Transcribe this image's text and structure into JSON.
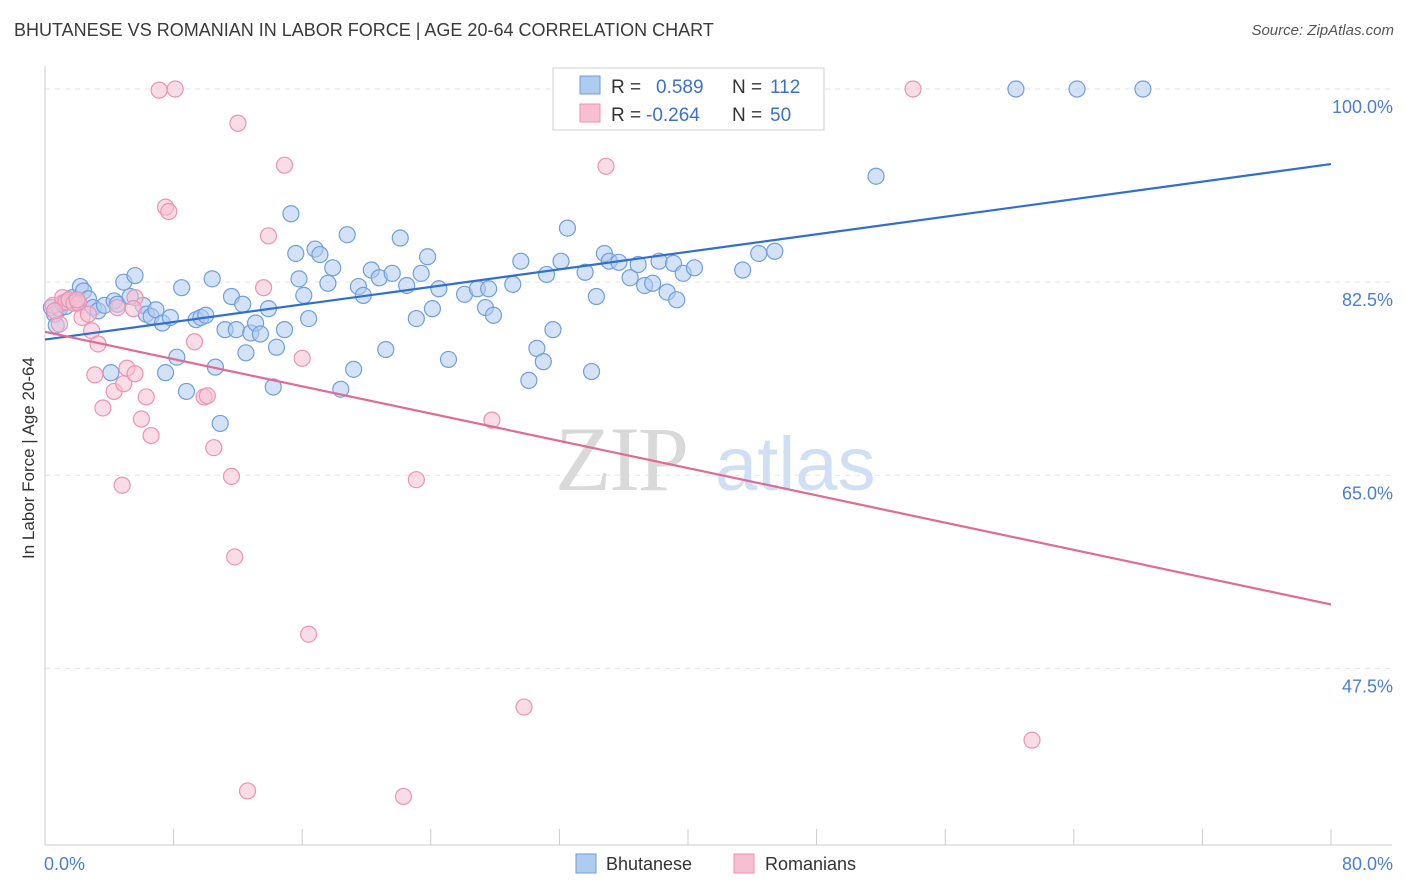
{
  "title": "BHUTANESE VS ROMANIAN IN LABOR FORCE | AGE 20-64 CORRELATION CHART",
  "source": "Source: ZipAtlas.com",
  "watermark": {
    "zip": "ZIP",
    "atlas": "atlas"
  },
  "colors": {
    "blue_fill": "#aecbf0",
    "blue_stroke": "#6f9fdc",
    "blue_line": "#2f6fd0",
    "pink_fill": "#f6bfd2",
    "pink_stroke": "#ee92b3",
    "pink_line": "#e06b96",
    "grid": "#e3e3e3",
    "tick_text": "#4a7fcf"
  },
  "legend": {
    "rows": [
      {
        "r_label": "R =",
        "r_value": "0.589",
        "n_label": "N =",
        "n_value": "112"
      },
      {
        "r_label": "R =",
        "r_value": "-0.264",
        "n_label": "N =",
        "n_value": "50"
      }
    ]
  },
  "chart_data": {
    "type": "scatter",
    "xlabel": "",
    "ylabel": "In Labor Force | Age 20-64",
    "xlim": [
      0,
      80
    ],
    "ylim": [
      31.5,
      101
    ],
    "x_tick_labels": [
      "0.0%",
      "80.0%"
    ],
    "y_ticks": [
      {
        "value": 100,
        "label": "100.0%"
      },
      {
        "value": 82.5,
        "label": "82.5%"
      },
      {
        "value": 65,
        "label": "65.0%"
      },
      {
        "value": 47.5,
        "label": "47.5%"
      }
    ],
    "grid": true,
    "legend_position": "top-center",
    "series": [
      {
        "name": "Bhutanese",
        "trend": {
          "x": [
            0,
            80
          ],
          "y": [
            77.3,
            93.2
          ]
        },
        "points": [
          [
            0.4,
            80.2
          ],
          [
            0.6,
            79.6
          ],
          [
            0.7,
            78.6
          ],
          [
            0.9,
            80.1
          ],
          [
            1.1,
            80.6
          ],
          [
            1.3,
            80.3
          ],
          [
            1.5,
            80.9
          ],
          [
            1.7,
            81.1
          ],
          [
            2.0,
            80.7
          ],
          [
            2.2,
            82.1
          ],
          [
            2.4,
            81.7
          ],
          [
            2.7,
            81.0
          ],
          [
            3.0,
            80.2
          ],
          [
            3.3,
            79.9
          ],
          [
            3.7,
            80.4
          ],
          [
            4.1,
            74.3
          ],
          [
            4.3,
            80.8
          ],
          [
            4.5,
            80.5
          ],
          [
            4.9,
            82.5
          ],
          [
            5.3,
            81.2
          ],
          [
            5.6,
            83.1
          ],
          [
            6.1,
            80.4
          ],
          [
            6.3,
            79.6
          ],
          [
            6.6,
            79.4
          ],
          [
            6.9,
            80.0
          ],
          [
            7.3,
            78.8
          ],
          [
            7.5,
            74.3
          ],
          [
            7.8,
            79.3
          ],
          [
            8.2,
            75.7
          ],
          [
            8.5,
            82.0
          ],
          [
            8.8,
            72.6
          ],
          [
            9.4,
            79.1
          ],
          [
            9.7,
            79.3
          ],
          [
            10.0,
            79.5
          ],
          [
            10.4,
            82.8
          ],
          [
            10.6,
            74.8
          ],
          [
            10.9,
            69.7
          ],
          [
            11.2,
            78.2
          ],
          [
            11.6,
            81.2
          ],
          [
            11.9,
            78.2
          ],
          [
            12.3,
            80.5
          ],
          [
            12.5,
            76.1
          ],
          [
            12.8,
            77.9
          ],
          [
            13.1,
            78.8
          ],
          [
            13.4,
            77.8
          ],
          [
            13.9,
            80.1
          ],
          [
            14.2,
            73.0
          ],
          [
            14.4,
            76.6
          ],
          [
            14.9,
            78.2
          ],
          [
            15.3,
            88.7
          ],
          [
            15.6,
            85.1
          ],
          [
            15.8,
            82.8
          ],
          [
            16.1,
            81.3
          ],
          [
            16.4,
            79.2
          ],
          [
            16.8,
            85.5
          ],
          [
            17.1,
            85.0
          ],
          [
            17.6,
            82.4
          ],
          [
            17.9,
            83.8
          ],
          [
            18.4,
            72.8
          ],
          [
            18.8,
            86.8
          ],
          [
            19.2,
            74.6
          ],
          [
            19.5,
            82.1
          ],
          [
            19.8,
            81.3
          ],
          [
            20.3,
            83.6
          ],
          [
            20.8,
            82.9
          ],
          [
            21.2,
            76.4
          ],
          [
            21.6,
            83.3
          ],
          [
            22.1,
            86.5
          ],
          [
            22.5,
            82.2
          ],
          [
            23.1,
            79.2
          ],
          [
            23.4,
            83.3
          ],
          [
            23.8,
            84.8
          ],
          [
            24.1,
            80.1
          ],
          [
            24.5,
            81.9
          ],
          [
            25.1,
            75.5
          ],
          [
            26.1,
            81.4
          ],
          [
            26.9,
            81.9
          ],
          [
            27.4,
            80.2
          ],
          [
            27.6,
            81.9
          ],
          [
            27.9,
            79.5
          ],
          [
            29.1,
            82.3
          ],
          [
            29.6,
            84.4
          ],
          [
            30.1,
            73.6
          ],
          [
            30.6,
            76.5
          ],
          [
            31.0,
            75.3
          ],
          [
            31.2,
            83.2
          ],
          [
            31.6,
            78.2
          ],
          [
            32.1,
            84.4
          ],
          [
            32.5,
            87.4
          ],
          [
            33.6,
            83.4
          ],
          [
            34.0,
            74.4
          ],
          [
            34.3,
            81.2
          ],
          [
            34.8,
            85.1
          ],
          [
            35.1,
            84.4
          ],
          [
            35.7,
            84.3
          ],
          [
            36.4,
            82.9
          ],
          [
            36.9,
            84.1
          ],
          [
            37.3,
            82.2
          ],
          [
            37.8,
            82.4
          ],
          [
            38.2,
            84.4
          ],
          [
            38.7,
            81.6
          ],
          [
            39.1,
            84.2
          ],
          [
            39.3,
            80.9
          ],
          [
            39.7,
            83.3
          ],
          [
            40.4,
            83.8
          ],
          [
            43.4,
            83.6
          ],
          [
            44.4,
            85.1
          ],
          [
            45.4,
            85.3
          ],
          [
            51.7,
            92.1
          ],
          [
            60.4,
            100.0
          ],
          [
            64.2,
            100.0
          ],
          [
            68.3,
            100.0
          ]
        ]
      },
      {
        "name": "Romanians",
        "trend": {
          "x": [
            0,
            80
          ],
          "y": [
            78.0,
            53.3
          ]
        },
        "points": [
          [
            0.5,
            80.4
          ],
          [
            0.9,
            78.7
          ],
          [
            1.1,
            81.1
          ],
          [
            1.3,
            80.7
          ],
          [
            1.5,
            80.9
          ],
          [
            1.8,
            80.6
          ],
          [
            2.1,
            80.6
          ],
          [
            2.3,
            79.3
          ],
          [
            2.7,
            79.6
          ],
          [
            2.9,
            78.1
          ],
          [
            3.1,
            74.1
          ],
          [
            3.3,
            76.9
          ],
          [
            3.6,
            71.1
          ],
          [
            4.3,
            72.6
          ],
          [
            4.5,
            80.2
          ],
          [
            4.8,
            64.1
          ],
          [
            4.9,
            73.3
          ],
          [
            5.1,
            74.7
          ],
          [
            5.6,
            81.1
          ],
          [
            5.6,
            74.2
          ],
          [
            6.0,
            70.1
          ],
          [
            6.3,
            72.1
          ],
          [
            6.6,
            68.6
          ],
          [
            7.1,
            99.9
          ],
          [
            7.5,
            89.3
          ],
          [
            7.7,
            88.9
          ],
          [
            8.1,
            100.0
          ],
          [
            9.3,
            77.1
          ],
          [
            9.9,
            72.1
          ],
          [
            10.1,
            72.2
          ],
          [
            10.5,
            67.5
          ],
          [
            11.6,
            64.9
          ],
          [
            11.8,
            57.6
          ],
          [
            12.0,
            96.9
          ],
          [
            12.6,
            36.4
          ],
          [
            13.6,
            82.0
          ],
          [
            13.9,
            86.7
          ],
          [
            14.9,
            93.1
          ],
          [
            16.0,
            75.6
          ],
          [
            16.4,
            50.6
          ],
          [
            22.3,
            35.9
          ],
          [
            23.1,
            64.6
          ],
          [
            27.8,
            70.0
          ],
          [
            29.8,
            44.0
          ],
          [
            34.9,
            93.0
          ],
          [
            54.0,
            100.0
          ],
          [
            61.4,
            41.0
          ],
          [
            0.6,
            79.9
          ],
          [
            2.0,
            80.9
          ],
          [
            5.5,
            80.1
          ]
        ]
      }
    ]
  }
}
